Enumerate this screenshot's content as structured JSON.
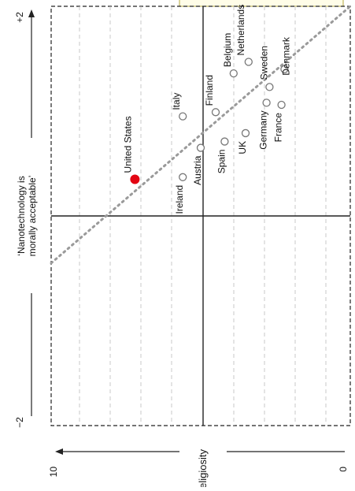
{
  "chart_data": {
    "type": "scatter",
    "orientation": "rotated-90-counterclockwise",
    "xlabel": "Religiosity",
    "ylabel": "‘Nanotechnology is\nmorally acceptable’",
    "x_ticks": [
      "10",
      "0"
    ],
    "y_ticks": [
      "+2",
      "−2"
    ],
    "xlim": [
      10,
      0
    ],
    "ylim": [
      -2,
      2
    ],
    "grid": true,
    "highlight_color": "#e30613",
    "point_color": "#777777",
    "points": [
      {
        "label": "United States",
        "x": 7.2,
        "y": 0.35,
        "highlight": true
      },
      {
        "label": "Italy",
        "x": 5.6,
        "y": 0.95,
        "highlight": false
      },
      {
        "label": "Ireland",
        "x": 5.6,
        "y": 0.37,
        "highlight": false
      },
      {
        "label": "Austria",
        "x": 5.0,
        "y": 0.65,
        "highlight": false
      },
      {
        "label": "Finland",
        "x": 4.5,
        "y": 0.99,
        "highlight": false
      },
      {
        "label": "Spain",
        "x": 4.2,
        "y": 0.71,
        "highlight": false
      },
      {
        "label": "Belgium",
        "x": 3.9,
        "y": 1.36,
        "highlight": false
      },
      {
        "label": "UK",
        "x": 3.5,
        "y": 0.79,
        "highlight": false
      },
      {
        "label": "Netherlands",
        "x": 3.4,
        "y": 1.47,
        "highlight": false
      },
      {
        "label": "Germany",
        "x": 2.8,
        "y": 1.08,
        "highlight": false
      },
      {
        "label": "Sweden",
        "x": 2.7,
        "y": 1.23,
        "highlight": false
      },
      {
        "label": "France",
        "x": 2.3,
        "y": 1.06,
        "highlight": false
      },
      {
        "label": "Denmark",
        "x": 2.2,
        "y": 1.4,
        "highlight": false
      }
    ],
    "trend_line": {
      "from": {
        "x": 10,
        "y": -0.45
      },
      "to": {
        "x": 0,
        "y": 2.0
      },
      "style": "dotted"
    }
  }
}
